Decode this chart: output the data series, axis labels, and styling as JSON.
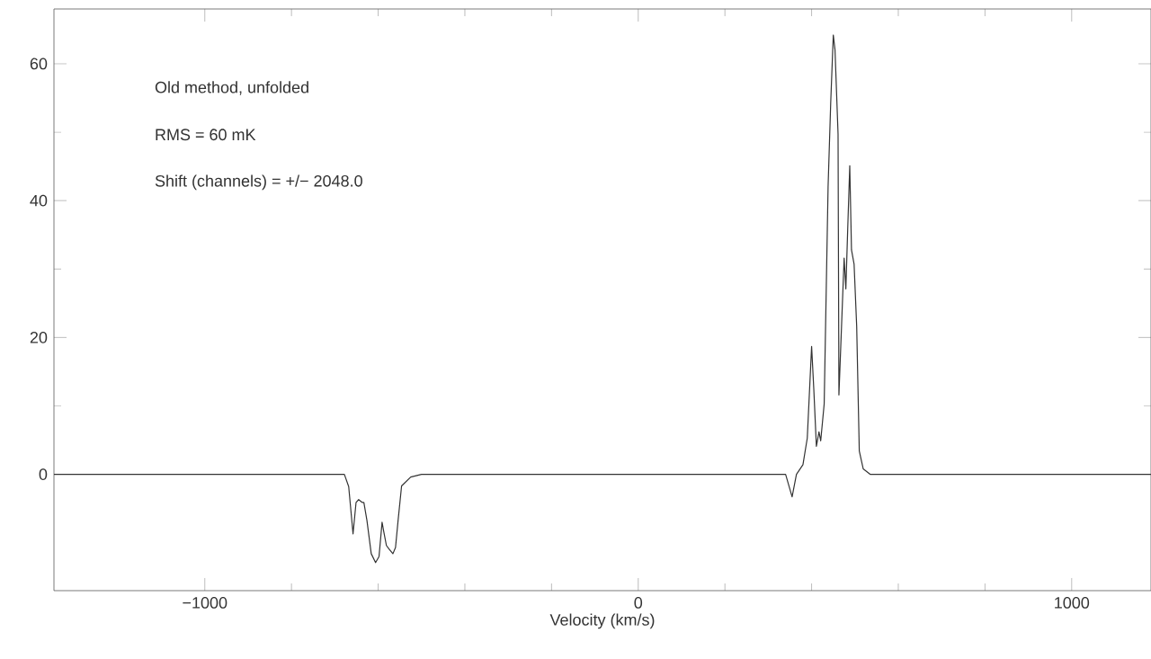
{
  "chart_data": {
    "type": "line",
    "xlabel": "Velocity (km/s)",
    "annotations": [
      "Old method, unfolded",
      "RMS = 60 mK",
      "Shift (channels) = +/− 2048.0"
    ],
    "x": [
      -1348,
      -1200,
      -1100,
      -1000,
      -900,
      -800,
      -700,
      -678,
      -668,
      -658,
      -651,
      -645,
      -637,
      -633,
      -626,
      -616,
      -606,
      -598,
      -591,
      -587,
      -581,
      -575,
      -566,
      -560,
      -554,
      -546,
      -525,
      -500,
      -400,
      -336,
      -300,
      -200,
      -100,
      0,
      100,
      200,
      300,
      340,
      355,
      365,
      380,
      390,
      400,
      405,
      411,
      417,
      421,
      429,
      438,
      444,
      450,
      454,
      461,
      463,
      469,
      475,
      479,
      483,
      488,
      492,
      498,
      504,
      510,
      519,
      535,
      600,
      700,
      800,
      900,
      1000,
      1100,
      1183
    ],
    "series": [
      {
        "color": "#333333",
        "values": [
          0,
          0,
          0,
          0,
          0,
          0,
          0,
          0,
          -1.8,
          -8.7,
          -4.1,
          -3.7,
          -4.1,
          -4.1,
          -6.7,
          -11.6,
          -12.9,
          -12,
          -7,
          -8.4,
          -10.4,
          -10.9,
          -11.6,
          -10.7,
          -6.7,
          -1.7,
          -0.4,
          0,
          0,
          0,
          0,
          0,
          0,
          0,
          0,
          0,
          0,
          0,
          -3.3,
          0,
          1.4,
          5.3,
          18.7,
          12.5,
          4.1,
          6.2,
          4.9,
          10.3,
          42,
          54.2,
          64.2,
          62,
          49.7,
          11.6,
          21.6,
          31.6,
          27.1,
          35.3,
          45.1,
          32.8,
          30.7,
          21.6,
          3.4,
          0.8,
          0,
          0,
          0,
          0,
          0,
          0,
          0,
          0
        ]
      }
    ],
    "xlim": [
      -1348,
      1183
    ],
    "ylim": [
      -17,
      68
    ],
    "xticks": [
      {
        "value": -1000,
        "label": "−1000"
      },
      0,
      1000
    ],
    "yticks": [
      0,
      20,
      40,
      60
    ],
    "marker": "none",
    "line_style": "solid"
  }
}
